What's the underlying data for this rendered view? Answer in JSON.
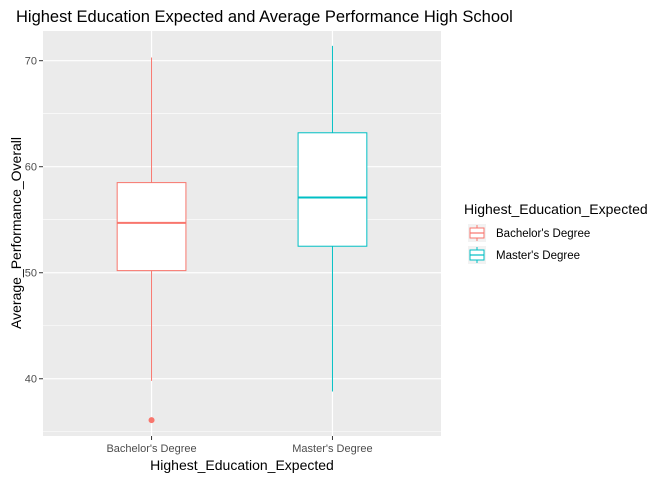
{
  "chart_data": {
    "type": "box",
    "title": "Highest Education Expected and Average Performance High School",
    "xlabel": "Highest_Education_Expected",
    "ylabel": "Average_Performance_Overall",
    "categories": [
      "Bachelor's Degree",
      "Master's Degree"
    ],
    "y_ticks": [
      40,
      50,
      60,
      70
    ],
    "ylim": [
      34.6,
      72.8
    ],
    "grid": true,
    "legend": {
      "title": "Highest_Education_Expected",
      "placement": "right",
      "entries": [
        "Bachelor's Degree",
        "Master's Degree"
      ]
    },
    "series": [
      {
        "name": "Bachelor's Degree",
        "color": "#F8766D",
        "whisker_low": 39.8,
        "q1": 50.2,
        "median": 54.7,
        "q3": 58.5,
        "whisker_high": 70.3,
        "outliers": [
          36.1
        ]
      },
      {
        "name": "Master's Degree",
        "color": "#00BFC4",
        "whisker_low": 38.8,
        "q1": 52.5,
        "median": 57.1,
        "q3": 63.2,
        "whisker_high": 71.4,
        "outliers": []
      }
    ]
  }
}
